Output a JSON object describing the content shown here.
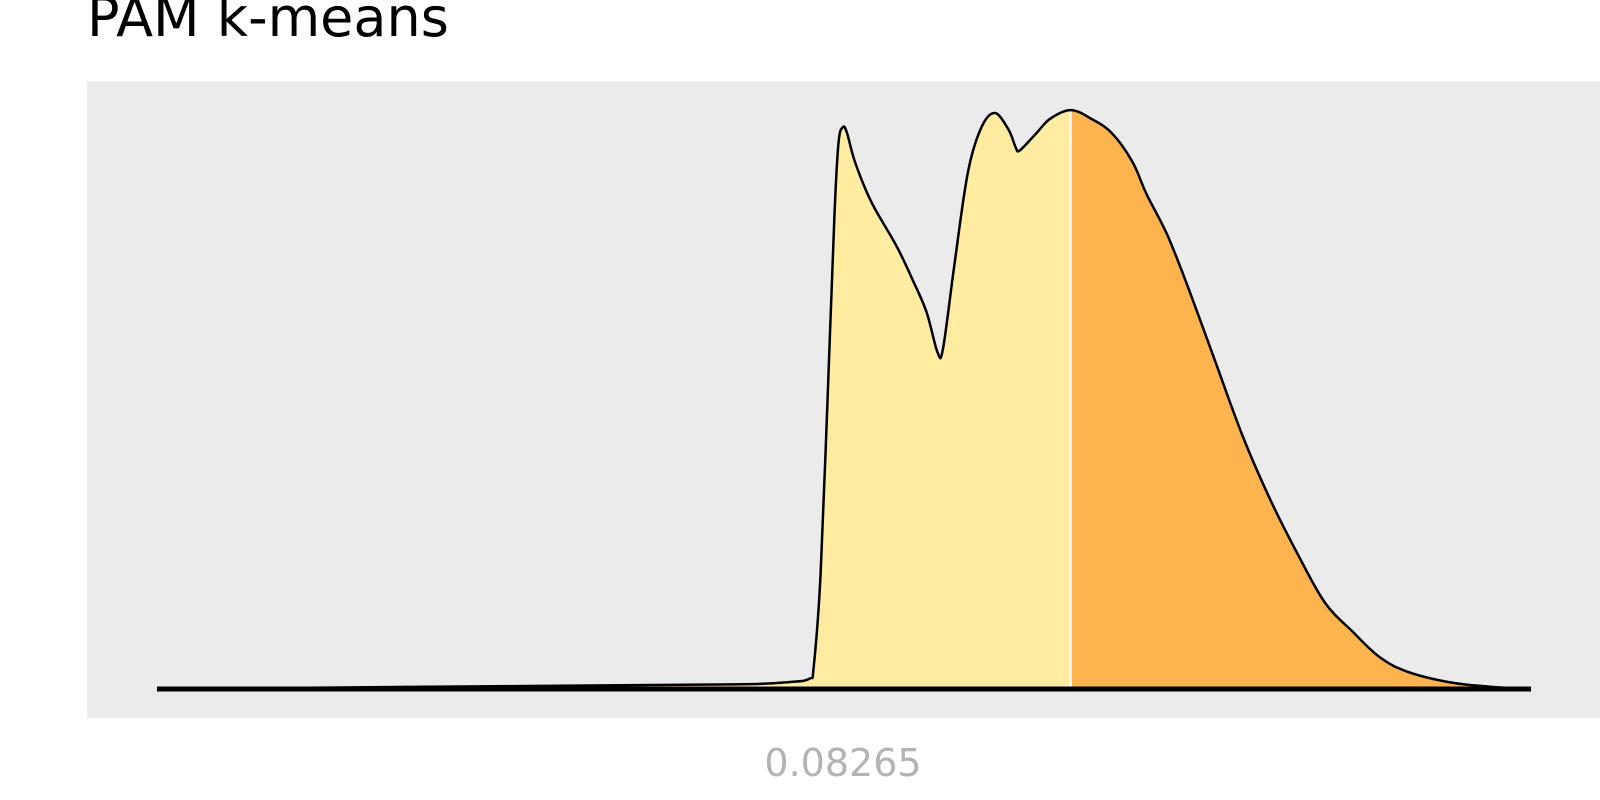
{
  "chart_data": {
    "type": "area",
    "title": "PAM k-means",
    "xlabel": "",
    "ylabel": "",
    "x_tick_labels": [
      "0.08265"
    ],
    "grid": false,
    "legend": "none",
    "colors": {
      "panel_background": "#ebebeb",
      "series_low": "#ffeca1",
      "series_high": "#fdb34e",
      "outline": "#000000",
      "tick_label": "#b3b3b3"
    },
    "density_points": [
      [
        0.0,
        0.0
      ],
      [
        0.26,
        0.005
      ],
      [
        0.42,
        0.008
      ],
      [
        0.46,
        0.012
      ],
      [
        0.475,
        0.018
      ],
      [
        0.478,
        0.04
      ],
      [
        0.483,
        0.2
      ],
      [
        0.488,
        0.5
      ],
      [
        0.493,
        0.82
      ],
      [
        0.496,
        0.948
      ],
      [
        0.499,
        0.975
      ],
      [
        0.502,
        0.967
      ],
      [
        0.508,
        0.915
      ],
      [
        0.52,
        0.845
      ],
      [
        0.538,
        0.77
      ],
      [
        0.55,
        0.71
      ],
      [
        0.56,
        0.655
      ],
      [
        0.568,
        0.585
      ],
      [
        0.572,
        0.59
      ],
      [
        0.58,
        0.73
      ],
      [
        0.59,
        0.895
      ],
      [
        0.6,
        0.975
      ],
      [
        0.61,
        1.0
      ],
      [
        0.62,
        0.97
      ],
      [
        0.625,
        0.94
      ],
      [
        0.628,
        0.935
      ],
      [
        0.64,
        0.965
      ],
      [
        0.65,
        0.99
      ],
      [
        0.665,
        1.005
      ],
      [
        0.68,
        0.99
      ],
      [
        0.695,
        0.965
      ],
      [
        0.71,
        0.915
      ],
      [
        0.72,
        0.86
      ],
      [
        0.735,
        0.79
      ],
      [
        0.75,
        0.7
      ],
      [
        0.77,
        0.57
      ],
      [
        0.79,
        0.44
      ],
      [
        0.81,
        0.33
      ],
      [
        0.83,
        0.235
      ],
      [
        0.85,
        0.15
      ],
      [
        0.87,
        0.1
      ],
      [
        0.89,
        0.055
      ],
      [
        0.91,
        0.03
      ],
      [
        0.94,
        0.012
      ],
      [
        0.97,
        0.004
      ],
      [
        1.0,
        0.0
      ]
    ],
    "split_x": 0.665
  }
}
